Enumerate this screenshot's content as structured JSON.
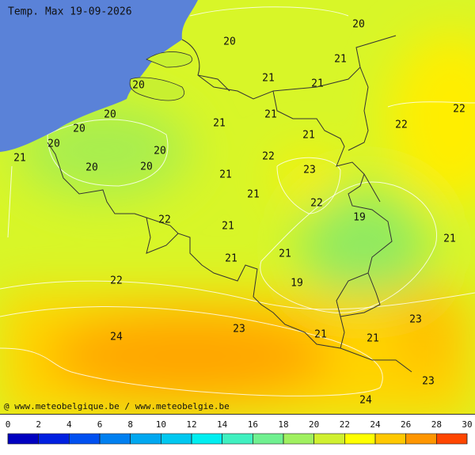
{
  "title": "Temp. Max 19-09-2026",
  "credit": "@ www.meteobelgique.be / www.meteobelgie.be",
  "labels": [
    20,
    20,
    21,
    20,
    21,
    21,
    22,
    20,
    21,
    21,
    22,
    20,
    21,
    20,
    20,
    22,
    21,
    20,
    20,
    23,
    21,
    21,
    22,
    19,
    22,
    21,
    21,
    21,
    21,
    22,
    19,
    23,
    23,
    24,
    21,
    21,
    23,
    24
  ],
  "colorbar": {
    "ticks": [
      0,
      2,
      4,
      6,
      8,
      10,
      12,
      14,
      16,
      18,
      20,
      22,
      24,
      26,
      28,
      30
    ],
    "colors": [
      "#0000c0",
      "#0020e0",
      "#0050f0",
      "#0080f0",
      "#00a8f0",
      "#00c8f0",
      "#00eef0",
      "#40f0c0",
      "#70f090",
      "#a0f060",
      "#d0f030",
      "#ffff00",
      "#ffc800",
      "#ff9600",
      "#ff4600"
    ]
  }
}
